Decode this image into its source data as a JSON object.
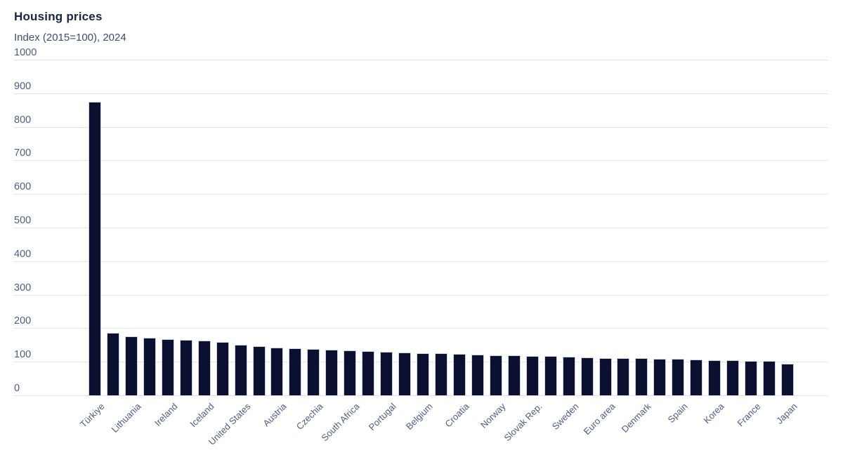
{
  "chart_data": {
    "type": "bar",
    "title": "Housing prices",
    "subtitle": "Index (2015=100), 2024",
    "year": "2024",
    "xlabel": "",
    "ylabel": "Index (2015=100)",
    "ylim": [
      0,
      1000
    ],
    "ytick_step": 100,
    "grid": "horizontal",
    "legend": "none",
    "x_tick_rotation": -45,
    "bars": [
      {
        "label": "Türkiye",
        "value": 875
      },
      {
        "label": "",
        "value": 186
      },
      {
        "label": "Lithuania",
        "value": 176
      },
      {
        "label": "",
        "value": 172
      },
      {
        "label": "Ireland",
        "value": 168
      },
      {
        "label": "",
        "value": 165
      },
      {
        "label": "Iceland",
        "value": 163
      },
      {
        "label": "",
        "value": 159
      },
      {
        "label": "United States",
        "value": 150
      },
      {
        "label": "",
        "value": 147
      },
      {
        "label": "Austria",
        "value": 143
      },
      {
        "label": "",
        "value": 141
      },
      {
        "label": "Czechia",
        "value": 139
      },
      {
        "label": "",
        "value": 135
      },
      {
        "label": "South Africa",
        "value": 133
      },
      {
        "label": "",
        "value": 131
      },
      {
        "label": "Portugal",
        "value": 129
      },
      {
        "label": "",
        "value": 127
      },
      {
        "label": "Belgium",
        "value": 126
      },
      {
        "label": "",
        "value": 125
      },
      {
        "label": "Croatia",
        "value": 123
      },
      {
        "label": "",
        "value": 121
      },
      {
        "label": "Norway",
        "value": 120
      },
      {
        "label": "",
        "value": 119
      },
      {
        "label": "Slovak Rep.",
        "value": 118
      },
      {
        "label": "",
        "value": 117
      },
      {
        "label": "Sweden",
        "value": 115
      },
      {
        "label": "",
        "value": 112
      },
      {
        "label": "Euro area",
        "value": 111
      },
      {
        "label": "",
        "value": 110
      },
      {
        "label": "Denmark",
        "value": 110
      },
      {
        "label": "",
        "value": 109
      },
      {
        "label": "Spain",
        "value": 108
      },
      {
        "label": "",
        "value": 107
      },
      {
        "label": "Korea",
        "value": 105
      },
      {
        "label": "",
        "value": 104
      },
      {
        "label": "France",
        "value": 103
      },
      {
        "label": "",
        "value": 102
      },
      {
        "label": "Japan",
        "value": 95
      }
    ],
    "colors": {
      "bar": "#0b1030",
      "bar_border": "#c9d3e2",
      "gridline": "#dde3ed",
      "axis_text": "#4d5d80",
      "title_text": "#18253f",
      "subtitle_text": "#3e4d6a",
      "background": "#ffffff"
    }
  }
}
